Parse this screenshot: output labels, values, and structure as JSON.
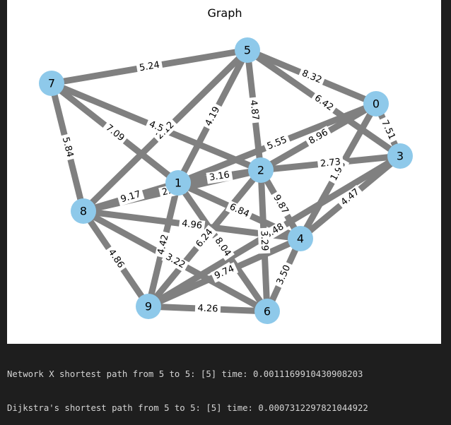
{
  "figure": {
    "title": "Graph"
  },
  "graph": {
    "nodes": [
      "0",
      "1",
      "2",
      "3",
      "4",
      "5",
      "6",
      "7",
      "8",
      "9"
    ],
    "edges": [
      {
        "source": "7",
        "target": "5",
        "label": "5.24"
      },
      {
        "source": "5",
        "target": "0",
        "label": "8.32"
      },
      {
        "source": "5",
        "target": "3",
        "label": "6.42"
      },
      {
        "source": "5",
        "target": "2",
        "label": "4.87"
      },
      {
        "source": "5",
        "target": "1",
        "label": "4.19"
      },
      {
        "source": "5",
        "target": "8",
        "label": "2.12"
      },
      {
        "source": "7",
        "target": "2",
        "label": "4.5"
      },
      {
        "source": "7",
        "target": "1",
        "label": "7.09"
      },
      {
        "source": "7",
        "target": "8",
        "label": "5.84"
      },
      {
        "source": "0",
        "target": "3",
        "label": "7.51"
      },
      {
        "source": "0",
        "target": "1",
        "label": "5.55"
      },
      {
        "source": "0",
        "target": "4",
        "label": "1.96"
      },
      {
        "source": "0",
        "target": "2",
        "label": "8.96"
      },
      {
        "source": "3",
        "target": "2",
        "label": "2.73"
      },
      {
        "source": "3",
        "target": "9",
        "label": "8.48"
      },
      {
        "source": "3",
        "target": "4",
        "label": "4.47"
      },
      {
        "source": "1",
        "target": "2",
        "label": "3.16"
      },
      {
        "source": "1",
        "target": "8",
        "label": "9.17"
      },
      {
        "source": "1",
        "target": "4",
        "label": "6.84"
      },
      {
        "source": "1",
        "target": "9",
        "label": "4.42"
      },
      {
        "source": "1",
        "target": "6",
        "label": "8.04"
      },
      {
        "source": "2",
        "target": "8",
        "label": "2.77"
      },
      {
        "source": "2",
        "target": "4",
        "label": "9.87"
      },
      {
        "source": "2",
        "target": "6",
        "label": "3.29"
      },
      {
        "source": "2",
        "target": "9",
        "label": "6.24"
      },
      {
        "source": "8",
        "target": "4",
        "label": "4.96"
      },
      {
        "source": "8",
        "target": "9",
        "label": "4.86"
      },
      {
        "source": "8",
        "target": "6",
        "label": "3.22"
      },
      {
        "source": "4",
        "target": "9",
        "label": "9.74"
      },
      {
        "source": "4",
        "target": "6",
        "label": "3.50"
      },
      {
        "source": "9",
        "target": "6",
        "label": "4.26"
      }
    ]
  },
  "console": {
    "line1": "Network X shortest path from 5 to 5: [5] time: 0.0011169910430908203",
    "line2": "Dijkstra's shortest path from 5 to 5: [5] time: 0.0007312297821044922"
  }
}
